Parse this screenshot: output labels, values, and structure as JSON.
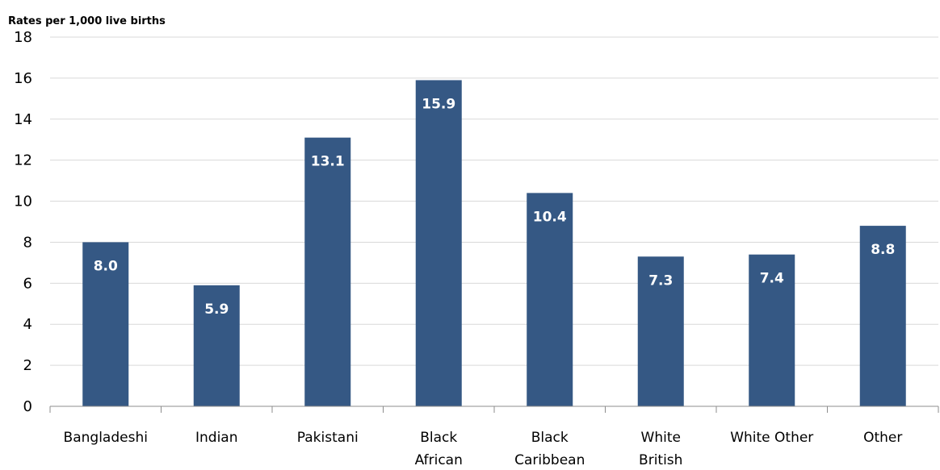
{
  "chart_data": {
    "type": "bar",
    "title": "",
    "ylabel": "Rates per 1,000 live births",
    "xlabel": "",
    "categories": [
      [
        "Bangladeshi"
      ],
      [
        "Indian"
      ],
      [
        "Pakistani"
      ],
      [
        "Black",
        "African"
      ],
      [
        "Black",
        "Caribbean"
      ],
      [
        "White",
        "British"
      ],
      [
        "White Other"
      ],
      [
        "Other"
      ]
    ],
    "values": [
      8.0,
      5.9,
      13.1,
      15.9,
      10.4,
      7.3,
      7.4,
      8.8
    ],
    "value_labels": [
      "8.0",
      "5.9",
      "13.1",
      "15.9",
      "10.4",
      "7.3",
      "7.4",
      "8.8"
    ],
    "ylim": [
      0,
      18
    ],
    "yticks": [
      0,
      2,
      4,
      6,
      8,
      10,
      12,
      14,
      16,
      18
    ],
    "grid": true,
    "legend": "none",
    "colors": {
      "bar": "#355884",
      "grid": "#d9d9d9",
      "axis": "#8c8c8c",
      "bar_label": "#ffffff"
    }
  }
}
